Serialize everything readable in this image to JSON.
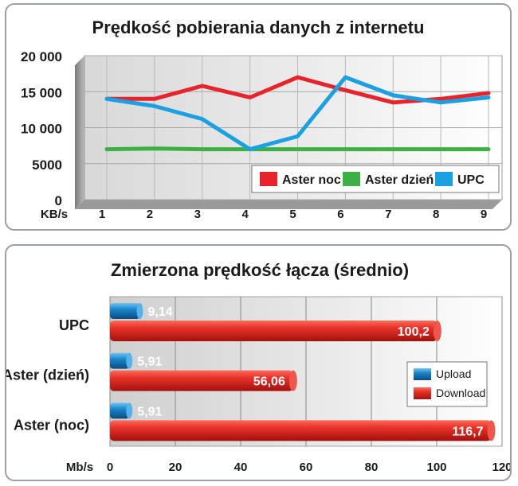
{
  "chart_data": [
    {
      "type": "line",
      "title": "Prędkość pobierania danych z internetu",
      "ylabel": "KB/s",
      "x": [
        1,
        2,
        3,
        4,
        5,
        6,
        7,
        8,
        9
      ],
      "x_tick_labels": [
        "1",
        "2",
        "3",
        "4",
        "5",
        "6",
        "7",
        "8",
        "9"
      ],
      "y_tick_labels": [
        "0",
        "5000",
        "10 000",
        "15 000",
        "20 000"
      ],
      "y_ticks": [
        0,
        5000,
        10000,
        15000,
        20000
      ],
      "ylim": [
        0,
        20000
      ],
      "grid": true,
      "legend": "bottom-right",
      "series": [
        {
          "name": "Aster noc",
          "color": "#e8232a",
          "values": [
            14000,
            14000,
            15800,
            14200,
            17000,
            15200,
            13500,
            14000,
            14800
          ]
        },
        {
          "name": "Aster dzień",
          "color": "#3cb043",
          "values": [
            7000,
            7100,
            7000,
            7000,
            7000,
            7000,
            7000,
            7000,
            7000
          ]
        },
        {
          "name": "UPC",
          "color": "#1ba1e2",
          "values": [
            14000,
            13000,
            11200,
            7000,
            8800,
            17000,
            14500,
            13500,
            14200
          ]
        }
      ]
    },
    {
      "type": "bar",
      "orientation": "horizontal",
      "title": "Zmierzona prędkość łącza (średnio)",
      "xlabel": "Mb/s",
      "categories": [
        "UPC",
        "Aster (dzień)",
        "Aster (noc)"
      ],
      "x_tick_labels": [
        "0",
        "20",
        "40",
        "60",
        "80",
        "100",
        "120"
      ],
      "x_ticks": [
        0,
        20,
        40,
        60,
        80,
        100,
        120
      ],
      "xlim": [
        0,
        120
      ],
      "grid": true,
      "legend": "right",
      "series": [
        {
          "name": "Upload",
          "color": "#1a7fc4",
          "values": [
            9.14,
            5.91,
            5.91
          ],
          "value_labels": [
            "9,14",
            "5,91",
            "5,91"
          ]
        },
        {
          "name": "Download",
          "color": "#d9221c",
          "values": [
            100.2,
            56.06,
            116.7
          ],
          "value_labels": [
            "100,2",
            "56,06",
            "116,7"
          ]
        }
      ]
    }
  ]
}
